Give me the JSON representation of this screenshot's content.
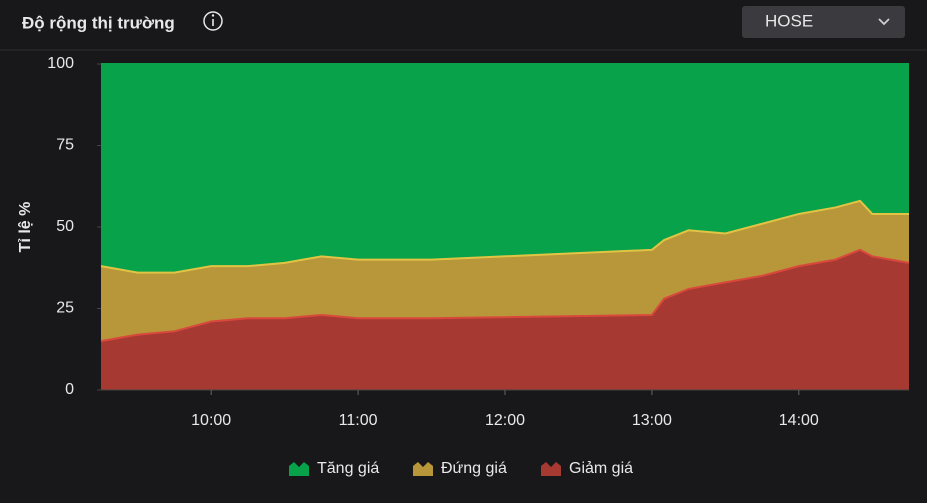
{
  "header": {
    "title": "Độ rộng thị trường",
    "exchange": "HOSE"
  },
  "chart_data": {
    "type": "stacked_area",
    "y_label": "Tỉ lệ %",
    "x": [
      "09:15",
      "09:30",
      "09:45",
      "10:00",
      "10:15",
      "10:30",
      "10:45",
      "11:00",
      "11:15",
      "11:30",
      "13:00",
      "13:05",
      "13:15",
      "13:30",
      "13:45",
      "14:00",
      "14:15",
      "14:25",
      "14:30",
      "14:45"
    ],
    "xlim": [
      "09:15",
      "14:45"
    ],
    "xticks": [
      "10:00",
      "11:00",
      "12:00",
      "13:00",
      "14:00"
    ],
    "ylim": [
      0,
      100
    ],
    "yticks": [
      0,
      25,
      50,
      75,
      100
    ],
    "grid": false,
    "legend": "bottom",
    "series": [
      {
        "name": "Tăng giá",
        "color": "#07a24a",
        "values": [
          62,
          64,
          64,
          62,
          62,
          61,
          59,
          60,
          60,
          60,
          57,
          54,
          51,
          52,
          49,
          46,
          44,
          42,
          46,
          46
        ]
      },
      {
        "name": "Đứng giá",
        "color": "#b8963a",
        "values": [
          23,
          19,
          18,
          17,
          16,
          17,
          18,
          18,
          18,
          18,
          20,
          18,
          18,
          15,
          16,
          16,
          16,
          15,
          13,
          15
        ]
      },
      {
        "name": "Giảm giá",
        "color": "#a63a32",
        "values": [
          15,
          17,
          18,
          21,
          22,
          22,
          23,
          22,
          22,
          22,
          23,
          28,
          31,
          33,
          35,
          38,
          40,
          43,
          41,
          39
        ]
      }
    ]
  }
}
